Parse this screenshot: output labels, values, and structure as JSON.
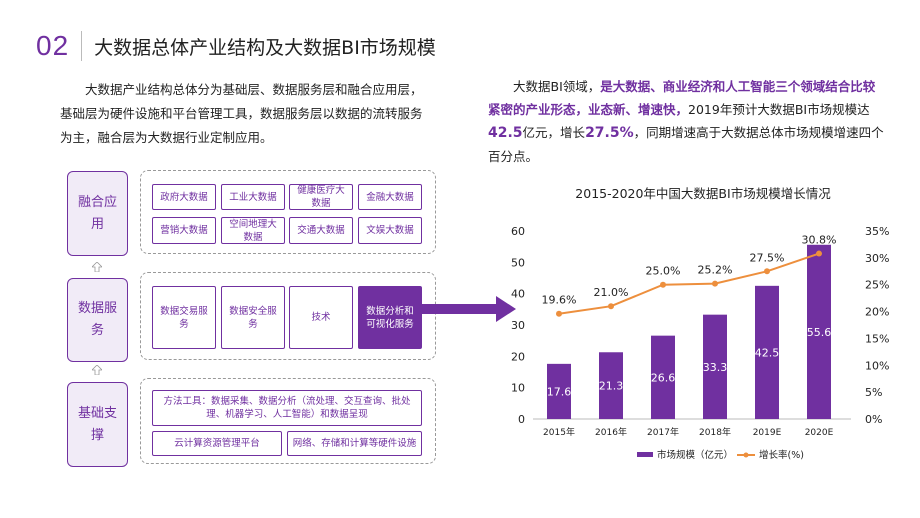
{
  "header": {
    "number": "02",
    "title": "大数据总体产业结构及大数据BI市场规模"
  },
  "intro_left": "大数据产业结构总体分为基础层、数据服务层和融合应用层，基础层为硬件设施和平台管理工具，数据服务层以数据的流转服务为主，融合层为大数据行业定制应用。",
  "intro_right": {
    "p1": "大数据BI领域，",
    "p2": "是大数据、商业经济和人工智能三个领域结合比较紧密的产业形态，业态新、增速快，",
    "p3": "2019年预计大数据BI市场规模达",
    "v1": "42.5",
    "p4": "亿元，增长",
    "v2": "27.5%",
    "p5": "，同期增速高于大数据总体市场规模增速四个百分点。"
  },
  "diagram": {
    "layers": [
      {
        "label": "融合应用",
        "items": [
          "政府大数据",
          "工业大数据",
          "健康医疗大数据",
          "金融大数据",
          "营销大数据",
          "空间地理大数据",
          "交通大数据",
          "文娱大数据"
        ]
      },
      {
        "label": "数据服务",
        "items": [
          "数据交易服务",
          "数据安全服务",
          "技术",
          "数据分析和可视化服务"
        ]
      },
      {
        "label": "基础支撑",
        "items": [
          "方法工具：数据采集、数据分析（流处理、交互查询、批处理、机器学习、人工智能）和数据呈现",
          "云计算资源管理平台",
          "网络、存储和计算等硬件设施"
        ]
      }
    ]
  },
  "chart_data": {
    "type": "bar",
    "title": "2015-2020年中国大数据BI市场规模增长情况",
    "categories": [
      "2015年",
      "2016年",
      "2017年",
      "2018年",
      "2019E",
      "2020E"
    ],
    "series": [
      {
        "name": "市场规模（亿元）",
        "type": "bar",
        "axis": "left",
        "values": [
          17.6,
          21.3,
          26.6,
          33.3,
          42.5,
          55.6
        ],
        "color": "#7030a0"
      },
      {
        "name": "增长率(%)",
        "type": "line",
        "axis": "right",
        "values": [
          19.6,
          21.0,
          25.0,
          25.2,
          27.5,
          30.8
        ],
        "labels": [
          "19.6%",
          "21.0%",
          "25.0%",
          "25.2%",
          "27.5%",
          "30.8%"
        ],
        "color": "#ed8f3d"
      }
    ],
    "y_left": {
      "min": 0,
      "max": 60,
      "ticks": [
        "0",
        "10",
        "20",
        "30",
        "40",
        "50",
        "60"
      ]
    },
    "y_right": {
      "min": 0,
      "max": 35,
      "ticks": [
        "0%",
        "5%",
        "10%",
        "15%",
        "20%",
        "25%",
        "30%",
        "35%"
      ]
    },
    "legend_position": "bottom",
    "grid": false
  },
  "colors": {
    "accent": "#7030a0",
    "line": "#ed8f3d",
    "label_bg": "#f1ebf7"
  },
  "icons": {
    "layer_arrow": "up-arrow-icon",
    "flow_arrow": "right-arrow-icon"
  }
}
